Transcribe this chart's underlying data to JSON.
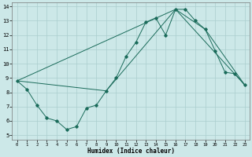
{
  "xlabel": "Humidex (Indice chaleur)",
  "xlim": [
    -0.5,
    23.5
  ],
  "ylim": [
    4.7,
    14.3
  ],
  "yticks": [
    5,
    6,
    7,
    8,
    9,
    10,
    11,
    12,
    13,
    14
  ],
  "xticks": [
    0,
    1,
    2,
    3,
    4,
    5,
    6,
    7,
    8,
    9,
    10,
    11,
    12,
    13,
    14,
    15,
    16,
    17,
    18,
    19,
    20,
    21,
    22,
    23
  ],
  "line_color": "#1a6b5a",
  "bg_color": "#cce8e8",
  "grid_color": "#aacece",
  "line1_x": [
    0,
    1,
    2,
    3,
    4,
    5,
    6,
    7,
    8,
    9,
    10,
    11,
    12,
    13,
    14,
    15,
    16,
    17,
    18,
    19,
    20,
    21,
    22,
    23
  ],
  "line1_y": [
    8.8,
    8.2,
    7.1,
    6.2,
    6.0,
    5.4,
    5.6,
    6.9,
    7.1,
    8.1,
    9.0,
    10.5,
    11.5,
    12.9,
    13.2,
    12.0,
    13.8,
    13.8,
    13.0,
    12.4,
    10.9,
    9.4,
    9.3,
    8.5
  ],
  "line3_x": [
    0,
    9,
    16,
    19,
    23
  ],
  "line3_y": [
    8.8,
    8.1,
    13.8,
    12.4,
    8.5
  ],
  "line4_x": [
    0,
    16,
    23
  ],
  "line4_y": [
    8.8,
    13.8,
    8.5
  ]
}
